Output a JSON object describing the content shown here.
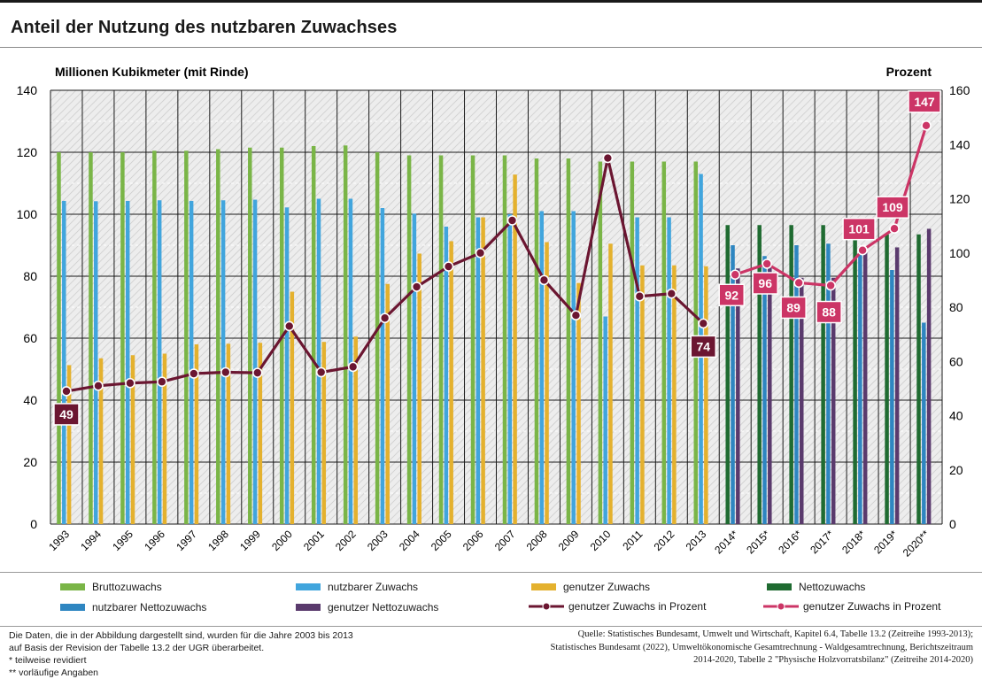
{
  "title": "Anteil der Nutzung des nutzbaren Zuwachses",
  "chart_data": {
    "type": "bar",
    "left_axis_label": "Millionen Kubikmeter (mit Rinde)",
    "right_axis_label": "Prozent",
    "ylim_left": [
      0,
      140
    ],
    "ylim_right": [
      0,
      160
    ],
    "yticks_left": [
      0,
      20,
      40,
      60,
      80,
      100,
      120,
      140
    ],
    "yticks_right": [
      0,
      20,
      40,
      60,
      80,
      100,
      120,
      140,
      160
    ],
    "grid": true,
    "categories": [
      "1993",
      "1994",
      "1995",
      "1996",
      "1997",
      "1998",
      "1999",
      "2000",
      "2001",
      "2002",
      "2003",
      "2004",
      "2005",
      "2006",
      "2007",
      "2008",
      "2009",
      "2010",
      "2011",
      "2012",
      "2013",
      "2014*",
      "2015*",
      "2016*",
      "2017*",
      "2018*",
      "2019*",
      "2020**"
    ],
    "series": [
      {
        "name": "Bruttozuwachs",
        "color": "#7ab547",
        "values": [
          120,
          120,
          120,
          120.5,
          120.5,
          121,
          121.5,
          121.5,
          122,
          122.2,
          120,
          119,
          119,
          119,
          119,
          118,
          118,
          117,
          117,
          117,
          117,
          null,
          null,
          null,
          null,
          null,
          null,
          null
        ]
      },
      {
        "name": "nutzbarer Zuwachs",
        "color": "#41a5dd",
        "values": [
          104.3,
          104.2,
          104.3,
          104.5,
          104.3,
          104.5,
          104.7,
          102.2,
          105,
          105,
          102,
          100.2,
          96,
          99,
          100,
          101,
          101,
          67,
          99,
          99,
          113,
          null,
          null,
          null,
          null,
          null,
          null,
          null
        ]
      },
      {
        "name": "genutzer Zuwachs",
        "color": "#e4b12e",
        "values": [
          51.3,
          53.5,
          54.5,
          55,
          58,
          58.2,
          58.5,
          75,
          58.8,
          60.5,
          77.5,
          87.3,
          91.3,
          99,
          112.8,
          91,
          77.8,
          90.5,
          83.5,
          83.5,
          83.2,
          null,
          null,
          null,
          null,
          null,
          null,
          null
        ]
      },
      {
        "name": "Nettozuwachs",
        "color": "#1f6b31",
        "values": [
          null,
          null,
          null,
          null,
          null,
          null,
          null,
          null,
          null,
          null,
          null,
          null,
          null,
          null,
          null,
          null,
          null,
          null,
          null,
          null,
          null,
          96.5,
          96.5,
          96.5,
          96.5,
          94,
          93.5,
          93.5
        ]
      },
      {
        "name": "nutzbarer Nettozuwachs",
        "color": "#2e86c1",
        "values": [
          null,
          null,
          null,
          null,
          null,
          null,
          null,
          null,
          null,
          null,
          null,
          null,
          null,
          null,
          null,
          null,
          null,
          null,
          null,
          null,
          null,
          90,
          86.5,
          90,
          90.5,
          87,
          82,
          65
        ]
      },
      {
        "name": "genutzer Nettozuwachs",
        "color": "#5a3a6d",
        "values": [
          null,
          null,
          null,
          null,
          null,
          null,
          null,
          null,
          null,
          null,
          null,
          null,
          null,
          null,
          null,
          null,
          null,
          null,
          null,
          null,
          null,
          82.5,
          83,
          79.5,
          79.5,
          88.5,
          89.3,
          95.3
        ]
      },
      {
        "name": "genutzer Zuwachs in Prozent",
        "color": "#6b1631",
        "axis": "right",
        "values": [
          49,
          51,
          52,
          52.5,
          55.5,
          56,
          55.8,
          73,
          56,
          58,
          76,
          87.5,
          95,
          100,
          112,
          90,
          77,
          135,
          84,
          85,
          74,
          null,
          null,
          null,
          null,
          null,
          null,
          null
        ]
      },
      {
        "name": "genutzer Zuwachs in Prozent",
        "color": "#cc3566",
        "axis": "right",
        "values": [
          null,
          null,
          null,
          null,
          null,
          null,
          null,
          null,
          null,
          null,
          null,
          null,
          null,
          null,
          null,
          null,
          null,
          null,
          null,
          null,
          null,
          92,
          96,
          89,
          88,
          101,
          109,
          147
        ]
      }
    ],
    "data_labels": [
      {
        "category": "1993",
        "text": "49",
        "color": "#6b1631"
      },
      {
        "category": "2013",
        "text": "74",
        "color": "#6b1631"
      },
      {
        "category": "2014*",
        "text": "92",
        "color": "#cc3566"
      },
      {
        "category": "2015*",
        "text": "96",
        "color": "#cc3566"
      },
      {
        "category": "2016*",
        "text": "89",
        "color": "#cc3566"
      },
      {
        "category": "2017*",
        "text": "88",
        "color": "#cc3566"
      },
      {
        "category": "2018*",
        "text": "101",
        "color": "#cc3566"
      },
      {
        "category": "2019*",
        "text": "109",
        "color": "#cc3566"
      },
      {
        "category": "2020**",
        "text": "147",
        "color": "#cc3566"
      }
    ]
  },
  "legend": {
    "bruttozuwachs": "Bruttozuwachs",
    "nutzbarer_zuwachs": "nutzbarer Zuwachs",
    "genutzer_zuwachs": "genutzer Zuwachs",
    "nettozuwachs": "Nettozuwachs",
    "nutzbarer_nettozuwachs": "nutzbarer Nettozuwachs",
    "genutzer_nettozuwachs": "genutzer Nettozuwachs",
    "prozent_dark": "genutzer Zuwachs in Prozent",
    "prozent_pink": "genutzer Zuwachs in Prozent"
  },
  "notes": {
    "line1": "Die Daten, die in der Abbildung dargestellt sind, wurden für die Jahre 2003 bis 2013",
    "line2": "auf Basis der Revision der Tabelle 13.2 der UGR überarbeitet.",
    "line3": "* teilweise revidiert",
    "line4": "** vorläufige Angaben"
  },
  "source": {
    "line1": "Quelle: Statistisches Bundesamt, Umwelt und Wirtschaft, Kapitel 6.4, Tabelle 13.2 (Zeitreihe 1993-2013);",
    "line2": "Statistisches Bundesamt (2022), Umweltökonomische Gesamtrechnung - Waldgesamtrechnung, Berichtszeitraum",
    "line3": "2014-2020, Tabelle 2 \"Physische Holzvorratsbilanz\" (Zeitreihe 2014-2020)"
  }
}
